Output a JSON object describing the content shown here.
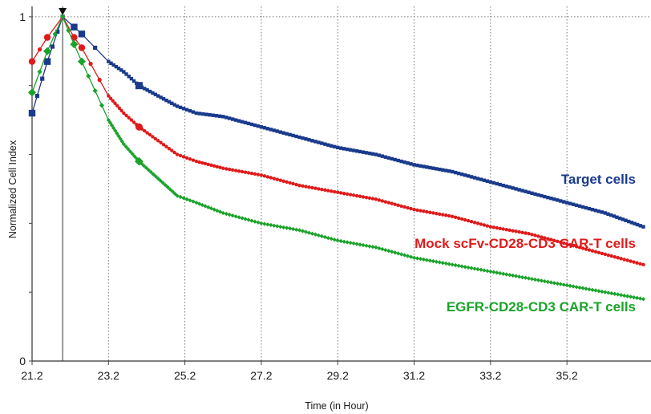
{
  "chart_data": {
    "type": "line",
    "title": "",
    "xlabel": "Time (in Hour)",
    "ylabel": "Normalized Cell Index",
    "xlim": [
      21.2,
      37.4
    ],
    "ylim": [
      0,
      1.03
    ],
    "x_ticks": [
      "21.2",
      "23.2",
      "25.2",
      "27.2",
      "29.2",
      "31.2",
      "33.2",
      "35.2"
    ],
    "y_ticks": [
      "0",
      "1"
    ],
    "grid": "vertical dotted at x ticks; dotted horizontal at y = 1",
    "normalization_marker_x": 22.0,
    "series": [
      {
        "name": "Target cells",
        "color": "#1a3a8c",
        "x": [
          21.2,
          21.6,
          22.0,
          22.3,
          22.5,
          23.2,
          23.6,
          24.0,
          24.5,
          25.0,
          25.5,
          26.2,
          27.2,
          28.2,
          29.2,
          30.2,
          31.2,
          32.2,
          33.2,
          34.2,
          35.2,
          36.2,
          37.2
        ],
        "y": [
          0.72,
          0.87,
          1.0,
          0.97,
          0.95,
          0.87,
          0.84,
          0.8,
          0.77,
          0.74,
          0.72,
          0.71,
          0.68,
          0.65,
          0.62,
          0.6,
          0.57,
          0.55,
          0.52,
          0.49,
          0.46,
          0.43,
          0.39
        ]
      },
      {
        "name": "Mock scFv-CD28-CD3 CAR-T cells",
        "color": "#e01a1a",
        "x": [
          21.2,
          21.6,
          22.0,
          22.3,
          22.5,
          23.2,
          23.6,
          24.0,
          24.5,
          25.0,
          25.5,
          26.2,
          27.2,
          28.2,
          29.2,
          30.2,
          31.2,
          32.2,
          33.2,
          34.2,
          35.2,
          36.2,
          37.2
        ],
        "y": [
          0.87,
          0.94,
          1.0,
          0.94,
          0.91,
          0.77,
          0.72,
          0.68,
          0.64,
          0.6,
          0.58,
          0.56,
          0.54,
          0.51,
          0.49,
          0.47,
          0.44,
          0.42,
          0.39,
          0.37,
          0.34,
          0.31,
          0.28
        ]
      },
      {
        "name": "EGFR-CD28-CD3 CAR-T cells",
        "color": "#1aa32a",
        "x": [
          21.2,
          21.6,
          22.0,
          22.3,
          22.5,
          23.2,
          23.6,
          24.0,
          24.5,
          25.0,
          25.5,
          26.2,
          27.2,
          28.2,
          29.2,
          30.2,
          31.2,
          32.2,
          33.2,
          34.2,
          35.2,
          36.2,
          37.2
        ],
        "y": [
          0.78,
          0.9,
          1.0,
          0.92,
          0.87,
          0.7,
          0.63,
          0.58,
          0.53,
          0.48,
          0.46,
          0.43,
          0.4,
          0.38,
          0.35,
          0.33,
          0.3,
          0.28,
          0.26,
          0.24,
          0.22,
          0.2,
          0.18
        ]
      }
    ]
  }
}
